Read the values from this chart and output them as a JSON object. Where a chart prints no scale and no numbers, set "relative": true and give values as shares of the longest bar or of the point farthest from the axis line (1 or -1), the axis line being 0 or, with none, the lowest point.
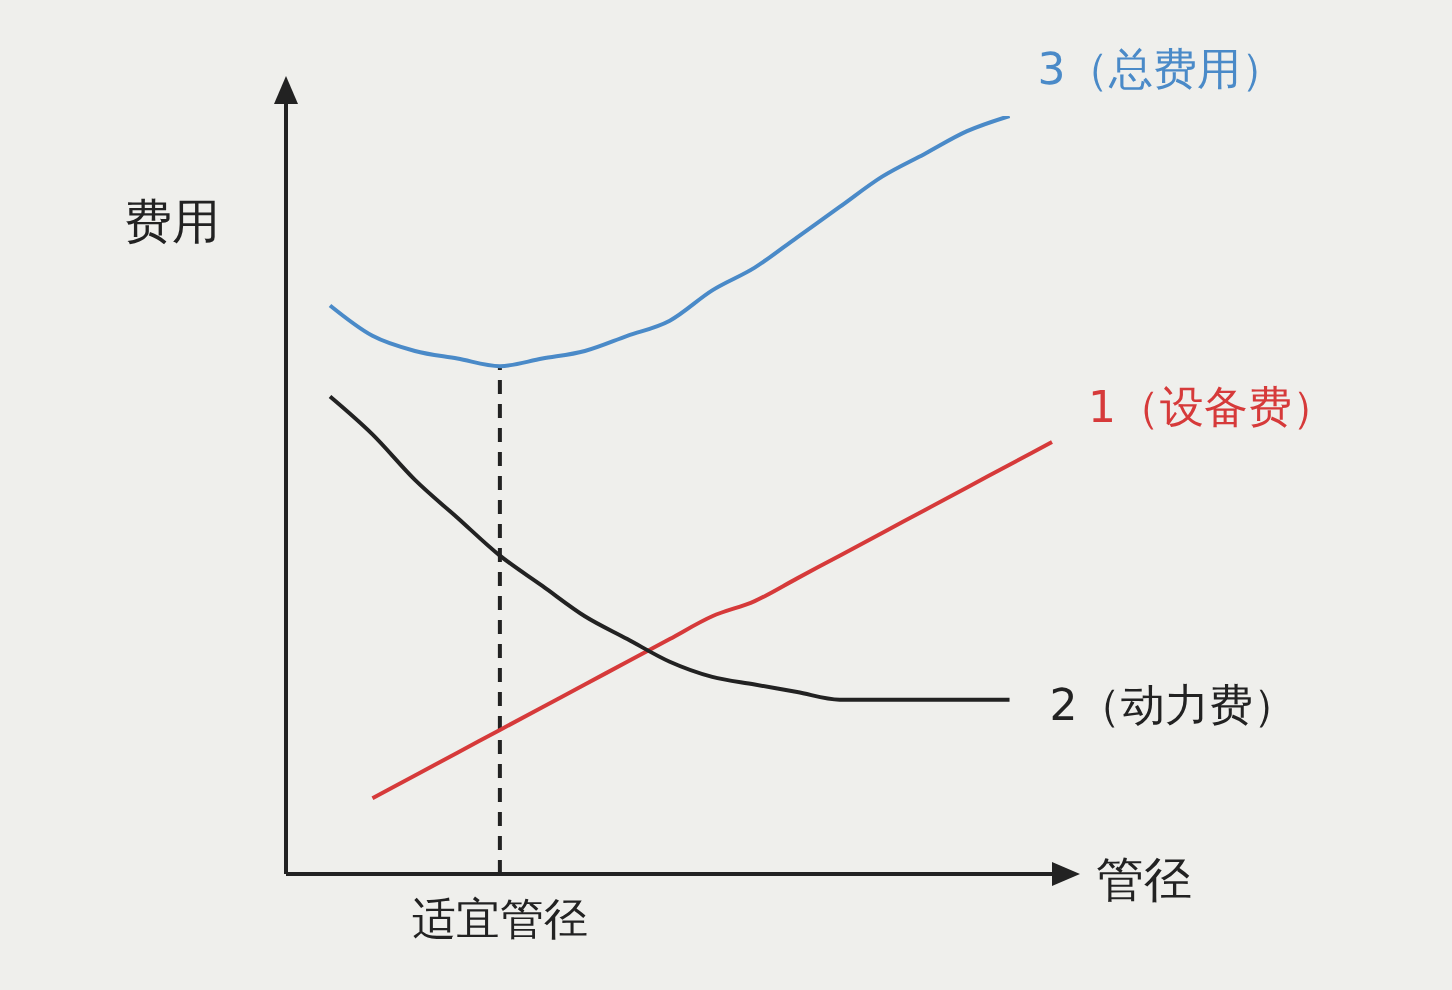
{
  "chart_data": {
    "type": "line",
    "relative": true,
    "xlabel": "管径",
    "ylabel": "费用",
    "categories": [
      null,
      null,
      null,
      null,
      null,
      null,
      null,
      null,
      null,
      null,
      null,
      null,
      null,
      null,
      null,
      null,
      null,
      null
    ],
    "series": [
      {
        "name": "3（总费用）",
        "color": "#4a8ac8",
        "values": [
          0.75,
          0.71,
          0.69,
          0.68,
          0.67,
          0.68,
          0.69,
          0.71,
          0.73,
          0.77,
          0.8,
          0.84,
          0.88,
          0.92,
          0.95,
          0.98,
          1,
          null
        ]
      },
      {
        "name": "1（设备费）",
        "color": "#d63a3a",
        "values": [
          null,
          0.1,
          0.13,
          0.16,
          0.19,
          0.22,
          0.25,
          0.28,
          0.31,
          0.34,
          0.36,
          0.39,
          0.42,
          0.45,
          0.48,
          0.51,
          0.54,
          0.57
        ]
      },
      {
        "name": "2（动力费）",
        "color": "#222222",
        "values": [
          0.63,
          0.58,
          0.52,
          0.47,
          0.42,
          0.38,
          0.34,
          0.31,
          0.28,
          0.26,
          0.25,
          0.24,
          0.23,
          0.23,
          0.23,
          0.23,
          0.23,
          null
        ]
      }
    ],
    "ref_lines": [
      {
        "axis": "x",
        "label": "适宜管径",
        "color": "#222222",
        "line_style": "dashed"
      }
    ],
    "grid": false,
    "legend": false,
    "marker": "none",
    "line_style": "solid"
  }
}
